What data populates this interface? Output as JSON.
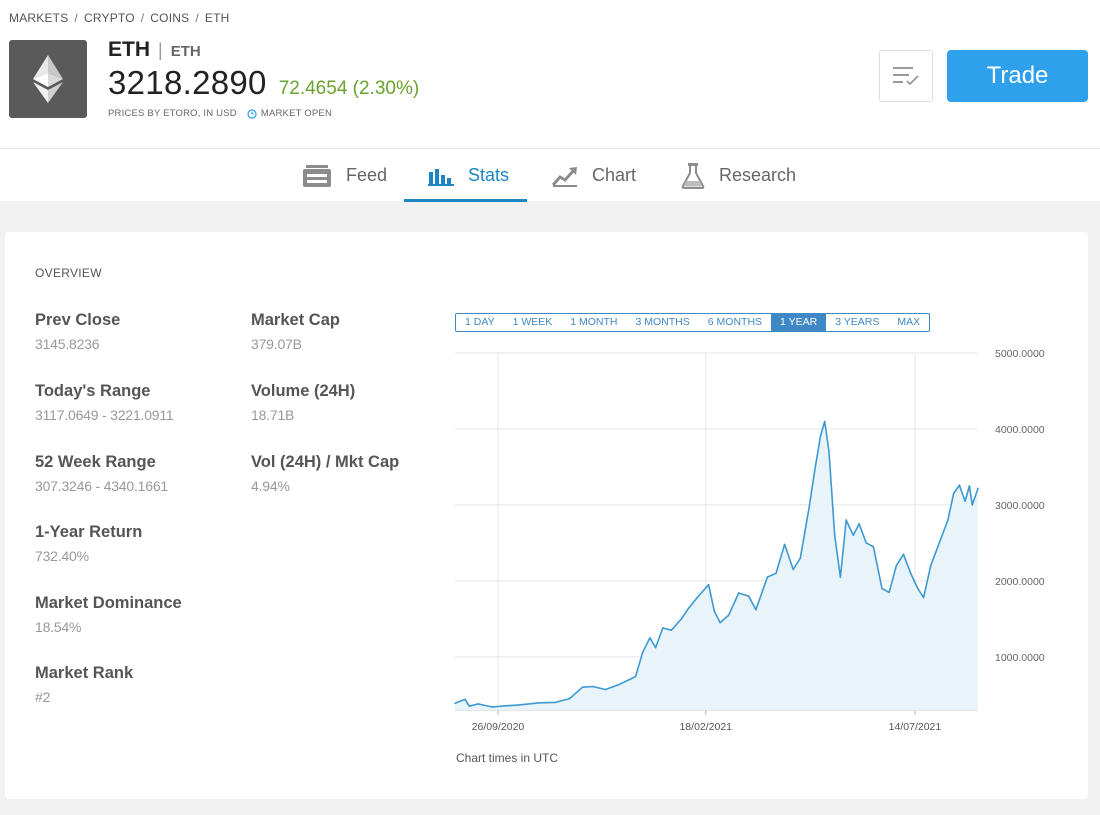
{
  "breadcrumb": {
    "markets": "MARKETS",
    "crypto": "CRYPTO",
    "coins": "COINS",
    "eth": "ETH",
    "sep": "/"
  },
  "instrument": {
    "symbol": "ETH",
    "pipe": "|",
    "name": "ETH",
    "price": "3218.2890",
    "change": "72.4654 (2.30%)",
    "prices_by": "PRICES BY ETORO, IN USD",
    "market_status": "MARKET OPEN",
    "logo_icon": "ethereum-icon"
  },
  "actions": {
    "watchlist_icon": "watchlist-icon",
    "trade_label": "Trade"
  },
  "tabs": [
    {
      "label": "Feed",
      "icon": "feed-icon"
    },
    {
      "label": "Stats",
      "icon": "stats-icon",
      "active": true
    },
    {
      "label": "Chart",
      "icon": "chart-icon"
    },
    {
      "label": "Research",
      "icon": "research-icon"
    }
  ],
  "overview": {
    "title": "OVERVIEW",
    "stats": [
      {
        "label": "Prev Close",
        "value": "3145.8236"
      },
      {
        "label": "Market Cap",
        "value": "379.07B"
      },
      {
        "label": "Today's Range",
        "value": "3117.0649 - 3221.0911"
      },
      {
        "label": "Volume (24H)",
        "value": "18.71B"
      },
      {
        "label": "52 Week Range",
        "value": "307.3246 - 4340.1661"
      },
      {
        "label": "Vol (24H) / Mkt Cap",
        "value": "4.94%"
      },
      {
        "label": "1-Year Return",
        "value": "732.40%"
      },
      {
        "label": "Market Dominance",
        "value": "18.54%"
      },
      {
        "label": "Market Rank",
        "value": "#2"
      }
    ]
  },
  "ranges": [
    {
      "label": "1 DAY"
    },
    {
      "label": "1 WEEK"
    },
    {
      "label": "1 MONTH"
    },
    {
      "label": "3 MONTHS"
    },
    {
      "label": "6 MONTHS"
    },
    {
      "label": "1 YEAR",
      "active": true
    },
    {
      "label": "3 YEARS"
    },
    {
      "label": "MAX"
    }
  ],
  "chart_note": "Chart times in UTC",
  "colors": {
    "accent": "#1d85c2",
    "trade_button": "#2ea0ec",
    "positive_change": "#6aa22e",
    "line": "#3d9ad1",
    "area": "#e8f3fa"
  },
  "chart_data": {
    "type": "area",
    "title": "",
    "xlabel": "",
    "ylabel": "",
    "ylim": [
      300,
      5000
    ],
    "yticks": [
      "1000.0000",
      "2000.0000",
      "3000.0000",
      "4000.0000",
      "5000.0000"
    ],
    "xticks": [
      "26/09/2020",
      "18/02/2021",
      "14/07/2021"
    ],
    "series": [
      {
        "values": [
          {
            "x": "2020-08-27",
            "y": 390
          },
          {
            "x": "2020-09-03",
            "y": 440
          },
          {
            "x": "2020-09-06",
            "y": 350
          },
          {
            "x": "2020-09-12",
            "y": 380
          },
          {
            "x": "2020-09-22",
            "y": 340
          },
          {
            "x": "2020-10-01",
            "y": 355
          },
          {
            "x": "2020-10-10",
            "y": 365
          },
          {
            "x": "2020-10-25",
            "y": 395
          },
          {
            "x": "2020-11-05",
            "y": 400
          },
          {
            "x": "2020-11-15",
            "y": 450
          },
          {
            "x": "2020-11-24",
            "y": 600
          },
          {
            "x": "2020-12-01",
            "y": 610
          },
          {
            "x": "2020-12-10",
            "y": 570
          },
          {
            "x": "2020-12-20",
            "y": 640
          },
          {
            "x": "2020-12-31",
            "y": 740
          },
          {
            "x": "2021-01-05",
            "y": 1060
          },
          {
            "x": "2021-01-10",
            "y": 1250
          },
          {
            "x": "2021-01-14",
            "y": 1120
          },
          {
            "x": "2021-01-19",
            "y": 1380
          },
          {
            "x": "2021-01-25",
            "y": 1350
          },
          {
            "x": "2021-02-01",
            "y": 1500
          },
          {
            "x": "2021-02-06",
            "y": 1640
          },
          {
            "x": "2021-02-12",
            "y": 1780
          },
          {
            "x": "2021-02-20",
            "y": 1950
          },
          {
            "x": "2021-02-24",
            "y": 1600
          },
          {
            "x": "2021-02-28",
            "y": 1450
          },
          {
            "x": "2021-03-06",
            "y": 1550
          },
          {
            "x": "2021-03-13",
            "y": 1840
          },
          {
            "x": "2021-03-20",
            "y": 1800
          },
          {
            "x": "2021-03-25",
            "y": 1620
          },
          {
            "x": "2021-04-02",
            "y": 2050
          },
          {
            "x": "2021-04-08",
            "y": 2100
          },
          {
            "x": "2021-04-14",
            "y": 2480
          },
          {
            "x": "2021-04-20",
            "y": 2150
          },
          {
            "x": "2021-04-25",
            "y": 2300
          },
          {
            "x": "2021-05-01",
            "y": 2950
          },
          {
            "x": "2021-05-05",
            "y": 3450
          },
          {
            "x": "2021-05-09",
            "y": 3900
          },
          {
            "x": "2021-05-12",
            "y": 4100
          },
          {
            "x": "2021-05-15",
            "y": 3700
          },
          {
            "x": "2021-05-19",
            "y": 2600
          },
          {
            "x": "2021-05-23",
            "y": 2050
          },
          {
            "x": "2021-05-27",
            "y": 2800
          },
          {
            "x": "2021-06-01",
            "y": 2600
          },
          {
            "x": "2021-06-05",
            "y": 2750
          },
          {
            "x": "2021-06-10",
            "y": 2500
          },
          {
            "x": "2021-06-15",
            "y": 2450
          },
          {
            "x": "2021-06-21",
            "y": 1900
          },
          {
            "x": "2021-06-26",
            "y": 1850
          },
          {
            "x": "2021-07-01",
            "y": 2200
          },
          {
            "x": "2021-07-06",
            "y": 2350
          },
          {
            "x": "2021-07-11",
            "y": 2100
          },
          {
            "x": "2021-07-16",
            "y": 1900
          },
          {
            "x": "2021-07-20",
            "y": 1780
          },
          {
            "x": "2021-07-25",
            "y": 2200
          },
          {
            "x": "2021-08-01",
            "y": 2550
          },
          {
            "x": "2021-08-06",
            "y": 2800
          },
          {
            "x": "2021-08-10",
            "y": 3150
          },
          {
            "x": "2021-08-14",
            "y": 3260
          },
          {
            "x": "2021-08-18",
            "y": 3050
          },
          {
            "x": "2021-08-21",
            "y": 3250
          },
          {
            "x": "2021-08-23",
            "y": 3000
          },
          {
            "x": "2021-08-27",
            "y": 3218
          }
        ]
      }
    ],
    "grid": true
  }
}
